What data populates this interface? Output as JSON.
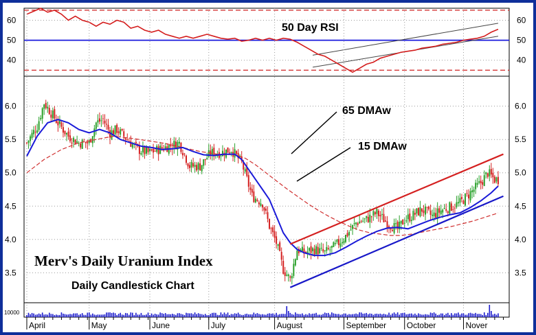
{
  "chart_data": [
    {
      "type": "line",
      "title": "50 Day RSI",
      "ylim": [
        32,
        66
      ],
      "y_ticks": [
        40,
        50,
        60
      ],
      "reference_lines": [
        {
          "value": 50,
          "style": "solid",
          "color": "#1a1adc"
        },
        {
          "value": 65,
          "style": "dashed",
          "color": "#d02020"
        },
        {
          "value": 35,
          "style": "dashed",
          "color": "#d02020"
        }
      ],
      "series": [
        {
          "color": "#d41c1c",
          "x": [
            0,
            4,
            8,
            12,
            16,
            20,
            24,
            28,
            32,
            36,
            40,
            44,
            48,
            52,
            56,
            60,
            64,
            68,
            72,
            76,
            80,
            84,
            88,
            92,
            96,
            100,
            104,
            108,
            112,
            116,
            120,
            124,
            128,
            132,
            136,
            140,
            144,
            148,
            152,
            156,
            160,
            164,
            168,
            172,
            176,
            180,
            184,
            188,
            192,
            196,
            200,
            204,
            208,
            212,
            216,
            220,
            224,
            228,
            232,
            236,
            240,
            244,
            248,
            252,
            256,
            260,
            264,
            268,
            272
          ],
          "values": [
            63,
            64.5,
            66,
            64,
            65,
            63,
            60,
            62,
            60,
            59,
            57,
            59,
            58,
            60,
            59,
            56,
            57,
            55,
            54,
            55,
            53,
            52,
            51,
            52,
            51,
            52,
            53,
            52,
            51,
            50.5,
            51,
            49.5,
            50,
            51,
            50,
            51,
            50,
            51,
            50.5,
            49,
            47,
            45,
            43,
            42,
            40,
            38,
            36,
            34,
            36,
            38,
            39,
            41,
            42,
            43,
            44,
            44.5,
            45,
            46,
            46.5,
            47,
            48,
            48.5,
            49,
            50,
            50.5,
            51,
            52,
            54,
            55.5
          ]
        }
      ],
      "trend_channel": {
        "color": "#444444",
        "x": [
          165,
          272
        ],
        "upper": [
          42.5,
          58.5
        ],
        "lower": [
          36.5,
          52
        ]
      }
    },
    {
      "type": "candlestick",
      "title": "Merv's Daily Uranium Index",
      "subtitle": "Daily Candlestick Chart",
      "ylim": [
        3.05,
        6.45
      ],
      "y_ticks": [
        3.5,
        4.0,
        4.5,
        5.0,
        5.5,
        6.0
      ],
      "y_tick_labels": [
        "3.5",
        "4.0",
        "4.5",
        "5.0",
        "5.5",
        "6.0"
      ],
      "x_labels": [
        "April",
        "May",
        "June",
        "July",
        "August",
        "September",
        "October",
        "Nover"
      ],
      "x_label_positions": [
        0,
        36,
        71,
        105,
        143,
        183,
        218,
        252
      ],
      "up_color": "#2aa02a",
      "down_color": "#d42020",
      "price_keypoints": {
        "x": [
          0,
          6,
          10,
          14,
          18,
          24,
          30,
          36,
          40,
          44,
          48,
          52,
          58,
          64,
          70,
          76,
          82,
          88,
          94,
          100,
          106,
          112,
          118,
          124,
          130,
          136,
          140,
          144,
          148,
          152,
          156,
          160,
          166,
          172,
          178,
          184,
          190,
          196,
          202,
          208,
          214,
          218,
          222,
          228,
          234,
          240,
          246,
          250,
          254,
          258,
          262,
          266,
          270,
          272
        ],
        "values": [
          5.45,
          5.7,
          6.05,
          5.9,
          5.75,
          5.55,
          5.45,
          5.45,
          5.75,
          5.8,
          5.6,
          5.65,
          5.5,
          5.35,
          5.3,
          5.35,
          5.4,
          5.45,
          5.1,
          5.1,
          5.3,
          5.3,
          5.35,
          5.15,
          4.65,
          4.55,
          4.2,
          3.95,
          3.55,
          3.4,
          3.85,
          3.8,
          3.85,
          3.8,
          3.9,
          4.05,
          4.25,
          4.3,
          4.4,
          4.25,
          4.15,
          4.3,
          4.35,
          4.45,
          4.35,
          4.45,
          4.5,
          4.55,
          4.65,
          4.75,
          4.85,
          5.0,
          4.9,
          4.9
        ]
      },
      "moving_averages": [
        {
          "name": "15 DMAw",
          "color": "#1a1ad8",
          "x": [
            0,
            6,
            12,
            18,
            24,
            30,
            36,
            42,
            48,
            54,
            60,
            66,
            72,
            78,
            84,
            90,
            96,
            102,
            108,
            114,
            120,
            124,
            128,
            132,
            136,
            140,
            144,
            148,
            152,
            156,
            160,
            166,
            172,
            178,
            184,
            190,
            196,
            202,
            208,
            214,
            220,
            226,
            232,
            238,
            244,
            250,
            256,
            262,
            268,
            272
          ],
          "values": [
            5.25,
            5.55,
            5.75,
            5.8,
            5.75,
            5.65,
            5.6,
            5.65,
            5.6,
            5.5,
            5.45,
            5.4,
            5.38,
            5.35,
            5.36,
            5.38,
            5.32,
            5.27,
            5.26,
            5.28,
            5.28,
            5.2,
            5.05,
            4.9,
            4.75,
            4.6,
            4.35,
            4.1,
            3.95,
            3.85,
            3.8,
            3.76,
            3.76,
            3.8,
            3.88,
            3.97,
            4.05,
            4.12,
            4.17,
            4.18,
            4.16,
            4.22,
            4.28,
            4.33,
            4.37,
            4.4,
            4.48,
            4.58,
            4.7,
            4.8
          ]
        },
        {
          "name": "65 DMAw",
          "color": "#d03030",
          "dashed": true,
          "x": [
            0,
            10,
            20,
            30,
            40,
            50,
            60,
            70,
            80,
            90,
            100,
            110,
            120,
            126,
            132,
            138,
            144,
            150,
            156,
            162,
            168,
            174,
            180,
            186,
            192,
            198,
            204,
            210,
            216,
            222,
            228,
            234,
            240,
            246,
            252,
            258,
            264,
            270,
            272
          ],
          "values": [
            5.0,
            5.2,
            5.35,
            5.45,
            5.5,
            5.55,
            5.52,
            5.48,
            5.44,
            5.38,
            5.32,
            5.28,
            5.27,
            5.22,
            5.12,
            5.0,
            4.88,
            4.76,
            4.65,
            4.54,
            4.44,
            4.35,
            4.27,
            4.2,
            4.14,
            4.1,
            4.08,
            4.06,
            4.06,
            4.08,
            4.11,
            4.14,
            4.17,
            4.2,
            4.24,
            4.28,
            4.33,
            4.38,
            4.4
          ]
        }
      ],
      "trend_lines": [
        {
          "color": "#d42020",
          "x": [
            152,
            275
          ],
          "values": [
            3.93,
            5.28
          ]
        },
        {
          "color": "#1818c8",
          "x": [
            152,
            275
          ],
          "values": [
            3.28,
            4.65
          ]
        }
      ],
      "annotations": [
        {
          "text": "65 DMAw"
        },
        {
          "text": "15 DMAw"
        }
      ]
    },
    {
      "type": "bar",
      "title": "",
      "y_tick_labels": [
        "10000"
      ],
      "color": "#1a1acc"
    }
  ]
}
